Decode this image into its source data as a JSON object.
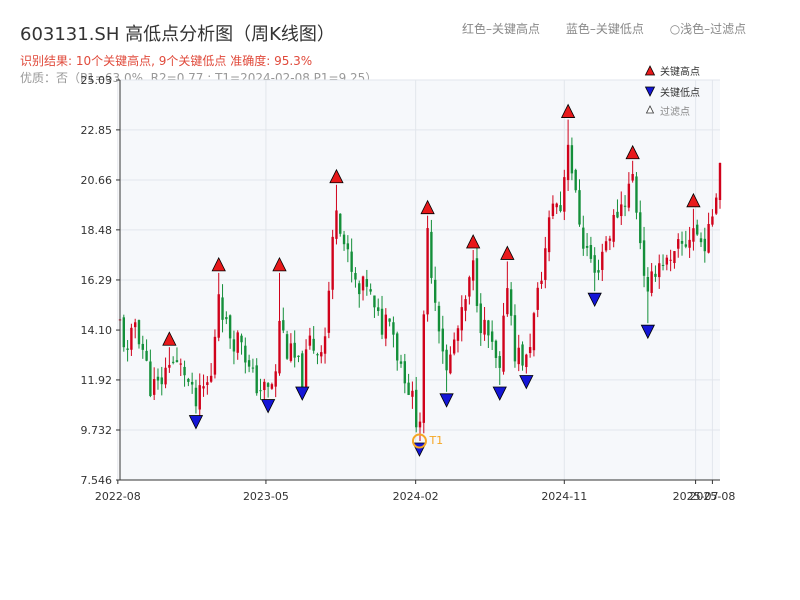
{
  "header": {
    "title": "603131.SH 高低点分析图（周K线图）",
    "legend_high": "红色–关键高点",
    "legend_low": "蓝色–关键低点",
    "legend_filtered": "○浅色–过滤点",
    "result_text": "识别结果: 10个关键高点, 9个关键低点  准确度: 95.3%",
    "quality_text": "优质：否（P1=63.0%, R2=0.77 ; T1=2024-02-08 P1=9.25）"
  },
  "colors": {
    "up": "#d0021b",
    "down": "#148f3a",
    "high_marker": "#e8191b",
    "low_marker": "#1416d6",
    "t1": "#f5a623",
    "plot_bg": "#f6f8fb",
    "grid": "#e2e6ec"
  },
  "chart_data": {
    "type": "candlestick",
    "x_ticks": [
      "2022-08",
      "2023-05",
      "2024-02",
      "2024-11",
      "2025-07",
      "2025-08"
    ],
    "y_ticks": [
      "7.546",
      "9.732",
      "11.92",
      "14.10",
      "16.29",
      "18.48",
      "20.66",
      "22.85",
      "25.03"
    ],
    "ylim": [
      7.546,
      25.03
    ],
    "x_range": [
      "2022-08-05",
      "2025-08-15"
    ],
    "legend": {
      "high": "关键高点",
      "low": "关键低点",
      "filtered": "过滤点"
    },
    "key_highs": [
      {
        "date": "2022-11-04",
        "value": 13.35
      },
      {
        "date": "2023-02-03",
        "value": 16.6
      },
      {
        "date": "2023-05-26",
        "value": 16.6
      },
      {
        "date": "2023-09-08",
        "value": 20.45
      },
      {
        "date": "2024-02-23",
        "value": 19.1
      },
      {
        "date": "2024-05-17",
        "value": 17.6
      },
      {
        "date": "2024-07-19",
        "value": 17.1
      },
      {
        "date": "2024-11-08",
        "value": 23.3
      },
      {
        "date": "2025-03-07",
        "value": 21.5
      },
      {
        "date": "2025-06-27",
        "value": 19.4
      }
    ],
    "key_lows": [
      {
        "date": "2022-12-23",
        "value": 10.45
      },
      {
        "date": "2023-05-05",
        "value": 11.15
      },
      {
        "date": "2023-07-07",
        "value": 11.7
      },
      {
        "date": "2024-02-08",
        "value": 9.25
      },
      {
        "date": "2024-03-29",
        "value": 11.4
      },
      {
        "date": "2024-07-05",
        "value": 11.7
      },
      {
        "date": "2024-08-23",
        "value": 12.2
      },
      {
        "date": "2024-12-27",
        "value": 15.8
      },
      {
        "date": "2025-04-04",
        "value": 14.4
      }
    ],
    "t1": {
      "date": "2024-02-08",
      "value": 9.25,
      "label": "T1"
    },
    "close_path": [
      [
        "2022-08-05",
        14.4
      ],
      [
        "2022-08-19",
        12.9
      ],
      [
        "2022-09-02",
        14.5
      ],
      [
        "2022-09-16",
        13.3
      ],
      [
        "2022-09-30",
        11.7
      ],
      [
        "2022-10-14",
        11.6
      ],
      [
        "2022-10-28",
        12.3
      ],
      [
        "2022-11-04",
        12.9
      ],
      [
        "2022-11-18",
        12.5
      ],
      [
        "2022-12-02",
        12.3
      ],
      [
        "2022-12-16",
        11.2
      ],
      [
        "2022-12-23",
        10.8
      ],
      [
        "2023-01-06",
        11.5
      ],
      [
        "2023-01-20",
        12.0
      ],
      [
        "2023-02-03",
        15.9
      ],
      [
        "2023-02-17",
        14.2
      ],
      [
        "2023-03-03",
        13.7
      ],
      [
        "2023-03-17",
        13.8
      ],
      [
        "2023-03-31",
        12.3
      ],
      [
        "2023-04-14",
        11.7
      ],
      [
        "2023-05-05",
        11.4
      ],
      [
        "2023-05-19",
        12.1
      ],
      [
        "2023-05-26",
        14.6
      ],
      [
        "2023-06-09",
        13.2
      ],
      [
        "2023-06-23",
        12.8
      ],
      [
        "2023-07-07",
        12.0
      ],
      [
        "2023-07-21",
        13.6
      ],
      [
        "2023-08-04",
        13.2
      ],
      [
        "2023-08-18",
        13.9
      ],
      [
        "2023-09-08",
        19.8
      ],
      [
        "2023-09-22",
        17.9
      ],
      [
        "2023-10-06",
        16.5
      ],
      [
        "2023-10-20",
        15.6
      ],
      [
        "2023-11-03",
        16.2
      ],
      [
        "2023-11-17",
        14.8
      ],
      [
        "2023-12-01",
        14.3
      ],
      [
        "2023-12-15",
        15.0
      ],
      [
        "2023-12-29",
        13.1
      ],
      [
        "2024-01-12",
        12.2
      ],
      [
        "2024-01-26",
        11.0
      ],
      [
        "2024-02-08",
        9.8
      ],
      [
        "2024-02-23",
        18.2
      ],
      [
        "2024-03-08",
        15.5
      ],
      [
        "2024-03-22",
        13.4
      ],
      [
        "2024-03-29",
        12.2
      ],
      [
        "2024-04-12",
        13.6
      ],
      [
        "2024-04-26",
        14.6
      ],
      [
        "2024-05-17",
        16.8
      ],
      [
        "2024-05-31",
        14.5
      ],
      [
        "2024-06-14",
        13.8
      ],
      [
        "2024-06-28",
        12.6
      ],
      [
        "2024-07-05",
        12.1
      ],
      [
        "2024-07-19",
        16.3
      ],
      [
        "2024-08-02",
        13.2
      ],
      [
        "2024-08-23",
        12.7
      ],
      [
        "2024-09-13",
        15.6
      ],
      [
        "2024-09-27",
        17.6
      ],
      [
        "2024-10-11",
        19.8
      ],
      [
        "2024-10-25",
        19.4
      ],
      [
        "2024-11-08",
        22.5
      ],
      [
        "2024-11-22",
        19.8
      ],
      [
        "2024-12-06",
        18.0
      ],
      [
        "2024-12-20",
        17.2
      ],
      [
        "2024-12-27",
        16.4
      ],
      [
        "2025-01-10",
        17.6
      ],
      [
        "2025-01-24",
        18.4
      ],
      [
        "2025-02-07",
        19.3
      ],
      [
        "2025-02-21",
        19.9
      ],
      [
        "2025-03-07",
        20.8
      ],
      [
        "2025-03-21",
        18.1
      ],
      [
        "2025-04-04",
        15.4
      ],
      [
        "2025-04-18",
        16.9
      ],
      [
        "2025-05-02",
        17.2
      ],
      [
        "2025-05-16",
        16.8
      ],
      [
        "2025-05-30",
        17.6
      ],
      [
        "2025-06-13",
        17.9
      ],
      [
        "2025-06-27",
        18.6
      ],
      [
        "2025-07-11",
        17.9
      ],
      [
        "2025-07-25",
        18.2
      ],
      [
        "2025-08-15",
        21.5
      ]
    ]
  }
}
